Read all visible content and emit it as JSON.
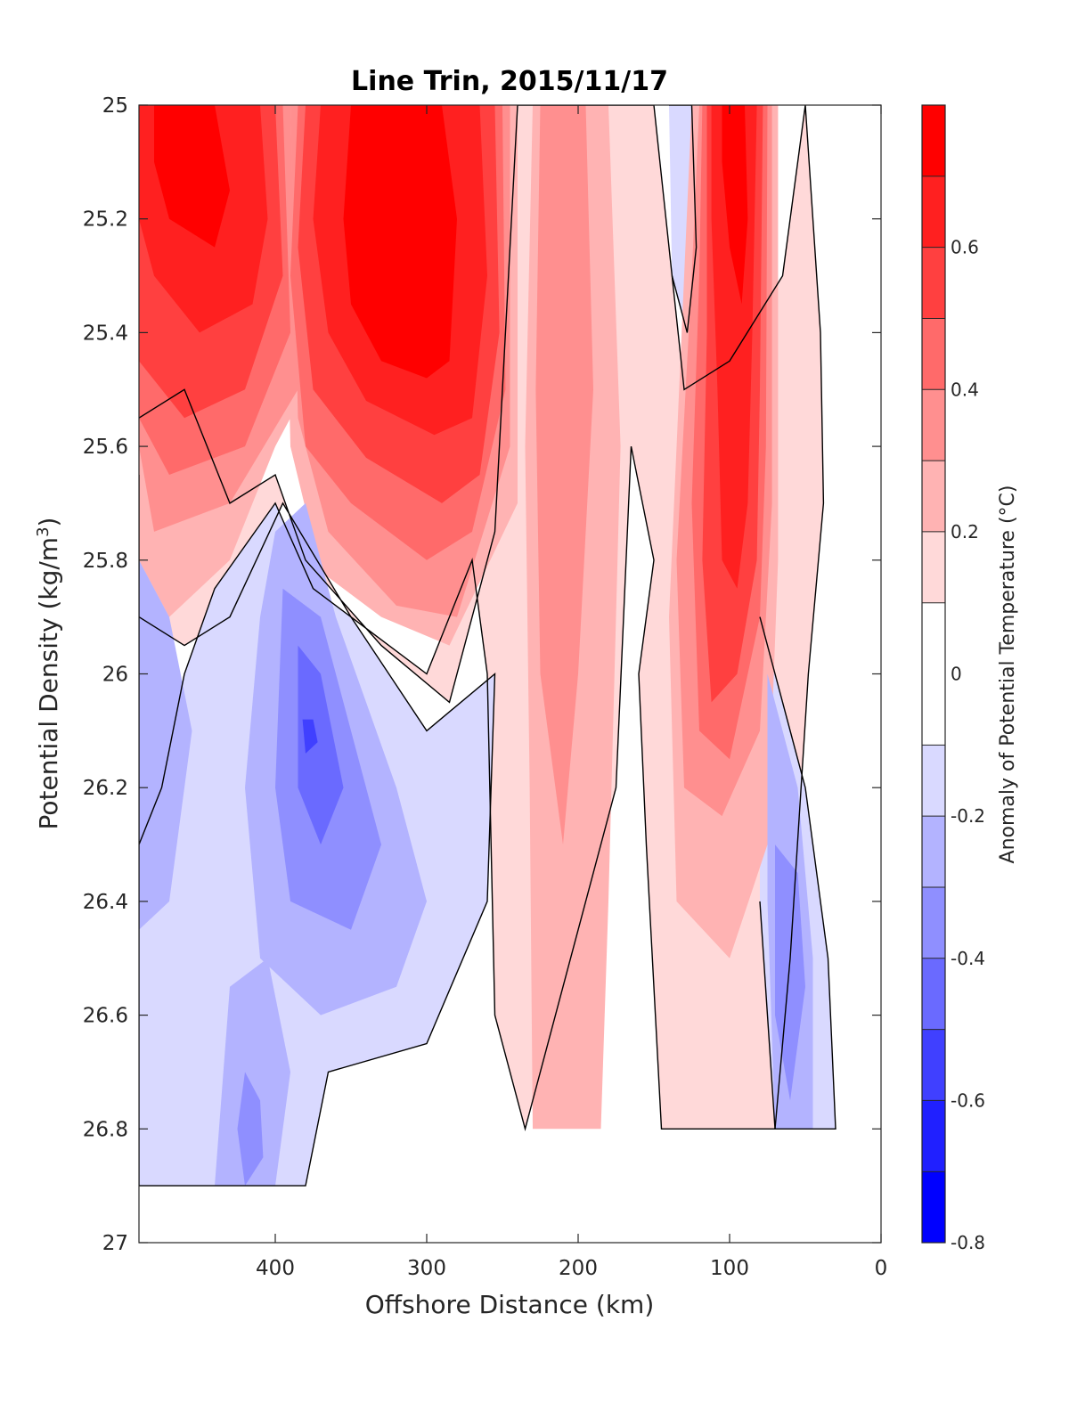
{
  "chart_data": {
    "type": "heatmap",
    "subtype": "filled-contour",
    "title": "Line Trin, 2015/11/17",
    "xlabel": "Offshore Distance (km)",
    "ylabel_main": "Potential Density (kg/m",
    "ylabel_sup": "3",
    "ylabel_close": ")",
    "xlim": [
      490,
      0
    ],
    "x_reversed": true,
    "ylim": [
      25,
      27
    ],
    "y_reversed": true,
    "xticks": [
      400,
      300,
      200,
      100,
      0
    ],
    "yticks": [
      25,
      25.2,
      25.4,
      25.6,
      25.8,
      26,
      26.2,
      26.4,
      26.6,
      26.8,
      27
    ],
    "colorbar": {
      "label": "Anomaly of Potential Temperature (°C)",
      "limits": [
        -0.8,
        0.8
      ],
      "ticks": [
        -0.8,
        -0.6,
        -0.4,
        -0.2,
        0,
        0.2,
        0.4,
        0.6
      ],
      "levels": [
        -0.8,
        -0.7,
        -0.6,
        -0.5,
        -0.4,
        -0.3,
        -0.2,
        -0.1,
        0.1,
        0.2,
        0.3,
        0.4,
        0.5,
        0.6,
        0.7,
        0.8
      ],
      "colors": [
        "#0000ff",
        "#2020ff",
        "#4040ff",
        "#6a6aff",
        "#8f8fff",
        "#b3b3ff",
        "#d9d9ff",
        "#ffffff",
        "#ffd9d9",
        "#ffb3b3",
        "#ff8f8f",
        "#ff6a6a",
        "#ff4040",
        "#ff2020",
        "#ff0000"
      ]
    },
    "zero_contour": "black solid lines",
    "regions": [
      {
        "value": 0.75,
        "points": [
          [
            480,
            25
          ],
          [
            440,
            25
          ],
          [
            430,
            25.15
          ],
          [
            440,
            25.25
          ],
          [
            470,
            25.2
          ],
          [
            480,
            25.1
          ]
        ]
      },
      {
        "value": 0.75,
        "points": [
          [
            350,
            25
          ],
          [
            290,
            25
          ],
          [
            280,
            25.2
          ],
          [
            285,
            25.45
          ],
          [
            300,
            25.48
          ],
          [
            330,
            25.45
          ],
          [
            350,
            25.35
          ],
          [
            355,
            25.2
          ]
        ]
      },
      {
        "value": 0.75,
        "points": [
          [
            105,
            25
          ],
          [
            90,
            25
          ],
          [
            88,
            25.2
          ],
          [
            92,
            25.35
          ],
          [
            100,
            25.25
          ],
          [
            105,
            25.1
          ]
        ]
      },
      {
        "value": 0.65,
        "points": [
          [
            490,
            25
          ],
          [
            410,
            25
          ],
          [
            405,
            25.2
          ],
          [
            415,
            25.35
          ],
          [
            450,
            25.4
          ],
          [
            480,
            25.3
          ],
          [
            490,
            25.2
          ]
        ]
      },
      {
        "value": 0.65,
        "points": [
          [
            370,
            25
          ],
          [
            265,
            25
          ],
          [
            260,
            25.3
          ],
          [
            270,
            25.55
          ],
          [
            295,
            25.58
          ],
          [
            340,
            25.52
          ],
          [
            365,
            25.4
          ],
          [
            375,
            25.2
          ]
        ]
      },
      {
        "value": 0.65,
        "points": [
          [
            112,
            25
          ],
          [
            82,
            25
          ],
          [
            85,
            25.4
          ],
          [
            88,
            25.7
          ],
          [
            95,
            25.85
          ],
          [
            105,
            25.8
          ],
          [
            108,
            25.5
          ],
          [
            112,
            25.2
          ]
        ]
      },
      {
        "value": 0.55,
        "points": [
          [
            490,
            25
          ],
          [
            400,
            25
          ],
          [
            395,
            25.3
          ],
          [
            420,
            25.5
          ],
          [
            460,
            25.55
          ],
          [
            490,
            25.45
          ]
        ]
      },
      {
        "value": 0.55,
        "points": [
          [
            380,
            25
          ],
          [
            255,
            25
          ],
          [
            252,
            25.4
          ],
          [
            265,
            25.65
          ],
          [
            290,
            25.7
          ],
          [
            340,
            25.62
          ],
          [
            375,
            25.5
          ],
          [
            385,
            25.25
          ]
        ]
      },
      {
        "value": 0.55,
        "points": [
          [
            115,
            25
          ],
          [
            78,
            25
          ],
          [
            80,
            25.5
          ],
          [
            82,
            25.8
          ],
          [
            95,
            26
          ],
          [
            112,
            26.05
          ],
          [
            118,
            25.8
          ],
          [
            115,
            25.4
          ]
        ]
      },
      {
        "value": 0.45,
        "points": [
          [
            490,
            25
          ],
          [
            395,
            25
          ],
          [
            390,
            25.4
          ],
          [
            420,
            25.6
          ],
          [
            470,
            25.65
          ],
          [
            490,
            25.55
          ]
        ]
      },
      {
        "value": 0.45,
        "points": [
          [
            385,
            25
          ],
          [
            250,
            25
          ],
          [
            248,
            25.5
          ],
          [
            270,
            25.75
          ],
          [
            300,
            25.8
          ],
          [
            350,
            25.7
          ],
          [
            380,
            25.6
          ],
          [
            390,
            25.3
          ]
        ]
      },
      {
        "value": 0.45,
        "points": [
          [
            118,
            25
          ],
          [
            75,
            25
          ],
          [
            76,
            25.6
          ],
          [
            80,
            25.9
          ],
          [
            100,
            26.15
          ],
          [
            120,
            26.1
          ],
          [
            125,
            25.7
          ],
          [
            120,
            25.3
          ]
        ]
      },
      {
        "value": 0.35,
        "points": [
          [
            490,
            25
          ],
          [
            390,
            25
          ],
          [
            385,
            25.5
          ],
          [
            430,
            25.7
          ],
          [
            480,
            25.75
          ],
          [
            490,
            25.6
          ]
        ]
      },
      {
        "value": 0.35,
        "points": [
          [
            390,
            25
          ],
          [
            245,
            25
          ],
          [
            245,
            25.6
          ],
          [
            280,
            25.9
          ],
          [
            320,
            25.88
          ],
          [
            365,
            25.75
          ],
          [
            385,
            25.55
          ]
        ]
      },
      {
        "value": 0.35,
        "points": [
          [
            225,
            25
          ],
          [
            195,
            25
          ],
          [
            190,
            25.5
          ],
          [
            200,
            26.0
          ],
          [
            210,
            26.3
          ],
          [
            225,
            26.0
          ],
          [
            228,
            25.5
          ]
        ]
      },
      {
        "value": 0.35,
        "points": [
          [
            120,
            25
          ],
          [
            72,
            25
          ],
          [
            72,
            25.7
          ],
          [
            80,
            26.1
          ],
          [
            105,
            26.25
          ],
          [
            130,
            26.2
          ],
          [
            135,
            25.8
          ],
          [
            125,
            25.3
          ]
        ]
      },
      {
        "value": 0.25,
        "points": [
          [
            490,
            25
          ],
          [
            385,
            25
          ],
          [
            380,
            25.5
          ],
          [
            400,
            25.6
          ],
          [
            430,
            25.8
          ],
          [
            470,
            25.9
          ],
          [
            490,
            25.8
          ]
        ]
      },
      {
        "value": 0.25,
        "points": [
          [
            395,
            25
          ],
          [
            240,
            25
          ],
          [
            240,
            25.7
          ],
          [
            285,
            25.95
          ],
          [
            330,
            25.9
          ],
          [
            370,
            25.82
          ],
          [
            390,
            25.6
          ]
        ]
      },
      {
        "value": 0.25,
        "points": [
          [
            230,
            25
          ],
          [
            180,
            25
          ],
          [
            172,
            25.6
          ],
          [
            180,
            26.4
          ],
          [
            185,
            26.8
          ],
          [
            230,
            26.8
          ],
          [
            232,
            26.2
          ],
          [
            235,
            25.6
          ]
        ]
      },
      {
        "value": 0.25,
        "points": [
          [
            125,
            25
          ],
          [
            68,
            25
          ],
          [
            68,
            25.8
          ],
          [
            75,
            26.3
          ],
          [
            100,
            26.5
          ],
          [
            135,
            26.4
          ],
          [
            140,
            25.9
          ],
          [
            130,
            25.3
          ]
        ]
      },
      {
        "value": 0.15,
        "points": [
          [
            490,
            25.55
          ],
          [
            460,
            25.5
          ],
          [
            430,
            25.7
          ],
          [
            400,
            25.65
          ],
          [
            380,
            25.8
          ],
          [
            330,
            25.95
          ],
          [
            285,
            26.05
          ],
          [
            255,
            25.75
          ],
          [
            240,
            25
          ],
          [
            150,
            25
          ],
          [
            130,
            25.5
          ],
          [
            100,
            25.45
          ],
          [
            65,
            25.3
          ],
          [
            50,
            25
          ],
          [
            40,
            25.4
          ],
          [
            38,
            25.7
          ],
          [
            48,
            26.0
          ],
          [
            60,
            26.5
          ],
          [
            70,
            26.8
          ],
          [
            145,
            26.8
          ],
          [
            155,
            26.3
          ],
          [
            160,
            26.0
          ],
          [
            150,
            25.8
          ],
          [
            165,
            25.6
          ],
          [
            175,
            26.2
          ],
          [
            235,
            26.8
          ],
          [
            255,
            26.6
          ],
          [
            260,
            26.0
          ],
          [
            270,
            25.8
          ],
          [
            300,
            26.0
          ],
          [
            350,
            25.9
          ],
          [
            395,
            25.7
          ],
          [
            430,
            25.9
          ],
          [
            460,
            25.95
          ],
          [
            490,
            25.9
          ]
        ]
      },
      {
        "value": -0.15,
        "points": [
          [
            490,
            25.65
          ],
          [
            490,
            26.9
          ],
          [
            380,
            26.9
          ],
          [
            365,
            26.7
          ],
          [
            300,
            26.65
          ],
          [
            260,
            26.4
          ],
          [
            255,
            26.0
          ],
          [
            300,
            26.1
          ],
          [
            350,
            25.9
          ],
          [
            375,
            25.85
          ],
          [
            400,
            25.7
          ],
          [
            440,
            25.85
          ],
          [
            460,
            26.0
          ],
          [
            475,
            26.2
          ],
          [
            490,
            26.3
          ]
        ]
      },
      {
        "value": -0.15,
        "points": [
          [
            80,
            25.9
          ],
          [
            50,
            26.2
          ],
          [
            35,
            26.5
          ],
          [
            30,
            26.8
          ],
          [
            70,
            26.8
          ],
          [
            80,
            26.4
          ]
        ]
      },
      {
        "value": -0.25,
        "points": [
          [
            490,
            25.8
          ],
          [
            490,
            26.45
          ],
          [
            470,
            26.4
          ],
          [
            455,
            26.1
          ],
          [
            470,
            25.9
          ]
        ]
      },
      {
        "value": -0.25,
        "points": [
          [
            400,
            25.75
          ],
          [
            380,
            25.7
          ],
          [
            360,
            25.9
          ],
          [
            320,
            26.2
          ],
          [
            300,
            26.4
          ],
          [
            320,
            26.55
          ],
          [
            370,
            26.6
          ],
          [
            410,
            26.5
          ],
          [
            420,
            26.2
          ],
          [
            410,
            25.9
          ]
        ]
      },
      {
        "value": -0.25,
        "points": [
          [
            75,
            26.0
          ],
          [
            55,
            26.2
          ],
          [
            45,
            26.5
          ],
          [
            45,
            26.8
          ],
          [
            70,
            26.8
          ],
          [
            75,
            26.4
          ]
        ]
      },
      {
        "value": -0.25,
        "points": [
          [
            430,
            26.55
          ],
          [
            405,
            26.5
          ],
          [
            390,
            26.7
          ],
          [
            400,
            26.9
          ],
          [
            440,
            26.9
          ]
        ]
      },
      {
        "value": -0.35,
        "points": [
          [
            395,
            25.85
          ],
          [
            370,
            25.9
          ],
          [
            350,
            26.1
          ],
          [
            330,
            26.3
          ],
          [
            350,
            26.45
          ],
          [
            390,
            26.4
          ],
          [
            400,
            26.2
          ]
        ]
      },
      {
        "value": -0.35,
        "points": [
          [
            70,
            26.3
          ],
          [
            55,
            26.35
          ],
          [
            50,
            26.55
          ],
          [
            60,
            26.75
          ],
          [
            70,
            26.6
          ]
        ]
      },
      {
        "value": -0.35,
        "points": [
          [
            420,
            26.7
          ],
          [
            410,
            26.75
          ],
          [
            408,
            26.85
          ],
          [
            420,
            26.9
          ],
          [
            425,
            26.8
          ]
        ]
      },
      {
        "value": -0.45,
        "points": [
          [
            385,
            25.95
          ],
          [
            370,
            26.0
          ],
          [
            355,
            26.2
          ],
          [
            370,
            26.3
          ],
          [
            385,
            26.2
          ]
        ]
      },
      {
        "value": -0.55,
        "points": [
          [
            382,
            26.08
          ],
          [
            375,
            26.08
          ],
          [
            372,
            26.12
          ],
          [
            380,
            26.14
          ]
        ]
      },
      {
        "value": -0.15,
        "points": [
          [
            140,
            25
          ],
          [
            125,
            25
          ],
          [
            122,
            25.25
          ],
          [
            128,
            25.4
          ],
          [
            138,
            25.3
          ]
        ]
      }
    ]
  }
}
